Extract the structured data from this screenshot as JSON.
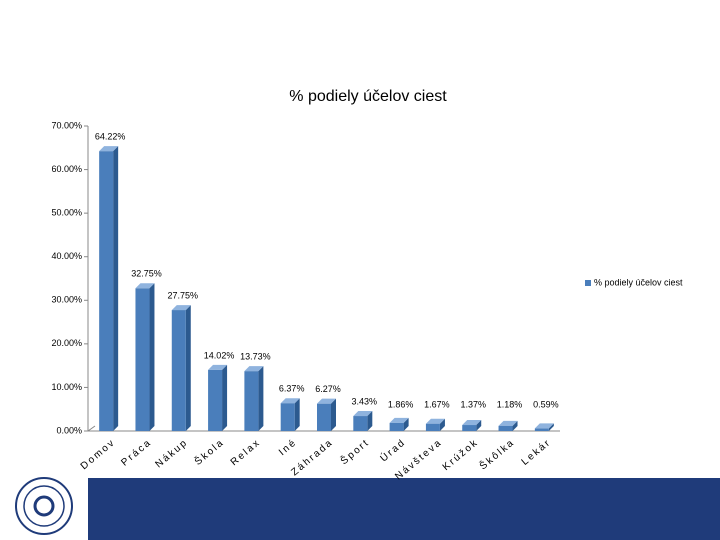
{
  "chart_data": {
    "type": "bar3d",
    "title": "% podiely účelov ciest",
    "categories": [
      "Domov",
      "Práca",
      "Nákup",
      "Škola",
      "Relax",
      "Iné",
      "Záhrada",
      "Šport",
      "Úrad",
      "Návšteva",
      "Krúžok",
      "Škôlka",
      "Lekár"
    ],
    "series": [
      {
        "name": "% podiely účelov ciest",
        "color": "#4a7ebb",
        "values": [
          64.22,
          32.75,
          27.75,
          14.02,
          13.73,
          6.37,
          6.27,
          3.43,
          1.86,
          1.67,
          1.37,
          1.18,
          0.59
        ],
        "value_labels": [
          "64.22%",
          "32.75%",
          "27.75%",
          "14.02%",
          "13.73%",
          "6.37%",
          "6.27%",
          "3.43%",
          "1.86%",
          "1.67%",
          "1.37%",
          "1.18%",
          "0.59%"
        ]
      }
    ],
    "ylim": [
      0,
      70
    ],
    "yticks": [
      {
        "value": 0,
        "label": "0.00%"
      },
      {
        "value": 10,
        "label": "10.00%"
      },
      {
        "value": 20,
        "label": "20.00%"
      },
      {
        "value": 30,
        "label": "30.00%"
      },
      {
        "value": 40,
        "label": "40.00%"
      },
      {
        "value": 50,
        "label": "50.00%"
      },
      {
        "value": 60,
        "label": "60.00%"
      },
      {
        "value": 70,
        "label": "70.00%"
      }
    ],
    "grid": false,
    "legend": "right"
  }
}
